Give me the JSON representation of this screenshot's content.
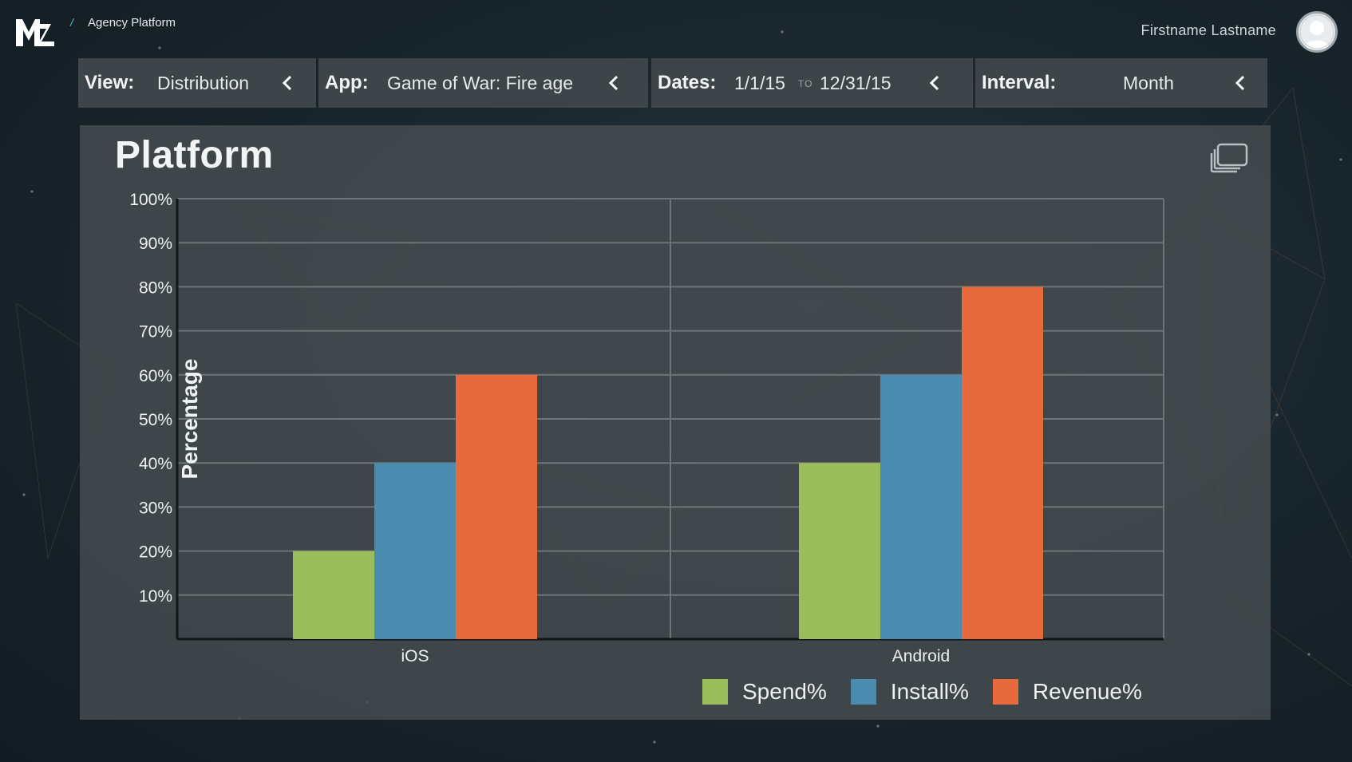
{
  "header": {
    "breadcrumb_separator": "/",
    "breadcrumb": "Agency Platform",
    "user_name": "Firstname Lastname"
  },
  "filters": {
    "view": {
      "label": "View:",
      "value": "Distribution"
    },
    "app": {
      "label": "App:",
      "value": "Game of War: Fire age"
    },
    "dates": {
      "label": "Dates:",
      "start": "1/1/15",
      "to": "TO",
      "end": "12/31/15"
    },
    "interval": {
      "label": "Interval:",
      "value": "Month"
    }
  },
  "card": {
    "title": "Platform"
  },
  "icons": [
    "mz-logo-icon",
    "avatar-icon",
    "chevron-left-icon",
    "expand-icon"
  ],
  "chart_data": {
    "type": "bar",
    "title": "Platform",
    "xlabel": "",
    "ylabel": "Percentage",
    "categories": [
      "iOS",
      "Android"
    ],
    "series": [
      {
        "name": "Spend%",
        "color": "#9bbd5b",
        "values": [
          20,
          40
        ]
      },
      {
        "name": "Install%",
        "color": "#4a8bb0",
        "values": [
          40,
          60
        ]
      },
      {
        "name": "Revenue%",
        "color": "#e66a3b",
        "values": [
          60,
          80
        ]
      }
    ],
    "ylim": [
      0,
      100
    ],
    "yticks": [
      "10%",
      "20%",
      "30%",
      "40%",
      "50%",
      "60%",
      "70%",
      "80%",
      "90%",
      "100%"
    ],
    "grid": true,
    "legend": "bottom-right"
  }
}
